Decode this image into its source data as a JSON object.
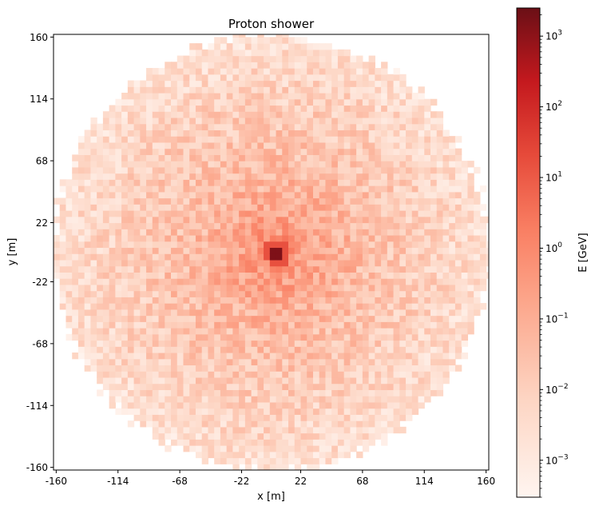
{
  "chart_data": {
    "type": "heatmap",
    "title": "Proton shower",
    "xlabel": "x [m]",
    "ylabel": "y [m]",
    "xlim": [
      -162,
      162
    ],
    "ylim": [
      -162,
      162
    ],
    "x_ticks": [
      -160,
      -114,
      -68,
      -22,
      22,
      68,
      114,
      160
    ],
    "y_ticks": [
      -160,
      -114,
      -68,
      -22,
      22,
      68,
      114,
      160
    ],
    "x_tick_labels": [
      "-160",
      "-114",
      "-68",
      "-22",
      "22",
      "68",
      "114",
      "160"
    ],
    "y_tick_labels": [
      "-160",
      "-114",
      "-68",
      "-22",
      "22",
      "68",
      "114",
      "160"
    ],
    "grid": false,
    "footprint_radius_m": 162,
    "cell_size_m": 4.6,
    "peak": {
      "x": 4,
      "y": 0,
      "value_gev": 1500
    },
    "typical_edge_value_gev": 0.005,
    "colormap": "Reds",
    "colorbar": {
      "label": "E [GeV]",
      "scale": "log",
      "range": [
        0.0003,
        2500
      ],
      "tick_values": [
        0.001,
        0.01,
        0.1,
        1,
        10,
        100,
        1000
      ],
      "tick_labels": [
        {
          "base": "10",
          "exp": "−3"
        },
        {
          "base": "10",
          "exp": "−2"
        },
        {
          "base": "10",
          "exp": "−1"
        },
        {
          "base": "10",
          "exp": "0"
        },
        {
          "base": "10",
          "exp": "1"
        },
        {
          "base": "10",
          "exp": "2"
        },
        {
          "base": "10",
          "exp": "3"
        }
      ]
    }
  }
}
